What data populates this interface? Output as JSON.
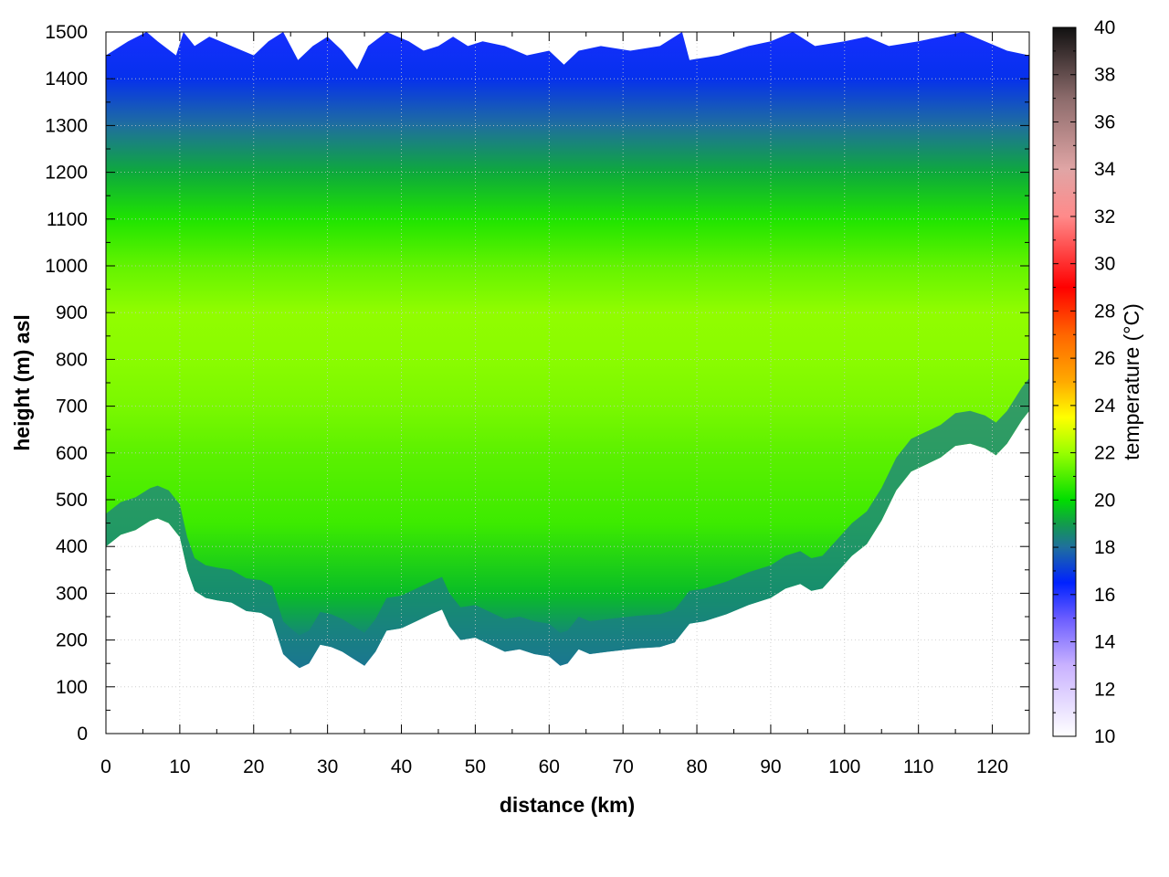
{
  "chart_data": {
    "type": "heatmap",
    "title": "",
    "xlabel": "distance (km)",
    "ylabel": "height (m) asl",
    "xlim": [
      0,
      125
    ],
    "ylim": [
      0,
      1500
    ],
    "xticks": [
      0,
      10,
      20,
      30,
      40,
      50,
      60,
      70,
      80,
      90,
      100,
      110,
      120
    ],
    "yticks": [
      0,
      100,
      200,
      300,
      400,
      500,
      600,
      700,
      800,
      900,
      1000,
      1100,
      1200,
      1300,
      1400,
      1500
    ],
    "grid": true,
    "colorbar": {
      "label": "temperature (°C)",
      "range": [
        10,
        40
      ],
      "ticks": [
        10,
        12,
        14,
        16,
        18,
        20,
        22,
        24,
        26,
        28,
        30,
        32,
        34,
        36,
        38,
        40
      ],
      "stops": [
        {
          "value": 10,
          "color": "#ffffff"
        },
        {
          "value": 13,
          "color": "#c9b2ff"
        },
        {
          "value": 15,
          "color": "#6a5cff"
        },
        {
          "value": 16.5,
          "color": "#0022ff"
        },
        {
          "value": 18,
          "color": "#1f6f9e"
        },
        {
          "value": 19,
          "color": "#129c4b"
        },
        {
          "value": 20,
          "color": "#00dd00"
        },
        {
          "value": 22,
          "color": "#99ff00"
        },
        {
          "value": 23.5,
          "color": "#ffff00"
        },
        {
          "value": 25,
          "color": "#ffaa00"
        },
        {
          "value": 27,
          "color": "#ff6600"
        },
        {
          "value": 29,
          "color": "#ff0000"
        },
        {
          "value": 32,
          "color": "#ff8a8a"
        },
        {
          "value": 34,
          "color": "#e0a5a5"
        },
        {
          "value": 37,
          "color": "#8c6b6b"
        },
        {
          "value": 40,
          "color": "#111111"
        }
      ]
    },
    "terrain_profile": {
      "distance_km": [
        0,
        2,
        4,
        6,
        7,
        8.5,
        10,
        11,
        12,
        13.5,
        15,
        17,
        19,
        21,
        22.5,
        24,
        25,
        26.2,
        27.5,
        29,
        30.5,
        32,
        33.5,
        35,
        36.5,
        38,
        40,
        42,
        44,
        45.5,
        46.5,
        48,
        50,
        52,
        54,
        56,
        58,
        60,
        61.5,
        62.5,
        64,
        65.5,
        68,
        72,
        75,
        77,
        79,
        81,
        84,
        87,
        90,
        92,
        94,
        95.5,
        97,
        99,
        101,
        103,
        105,
        107,
        109,
        111,
        113,
        115,
        117,
        119,
        120.5,
        122,
        124,
        125
      ],
      "ground_height_m": [
        400,
        425,
        435,
        455,
        460,
        450,
        420,
        350,
        305,
        290,
        285,
        280,
        262,
        258,
        245,
        170,
        155,
        140,
        150,
        190,
        185,
        175,
        160,
        145,
        175,
        220,
        225,
        240,
        255,
        265,
        230,
        200,
        205,
        190,
        175,
        180,
        170,
        165,
        145,
        150,
        180,
        170,
        175,
        182,
        185,
        195,
        235,
        240,
        255,
        275,
        290,
        310,
        320,
        305,
        310,
        345,
        380,
        405,
        455,
        520,
        560,
        575,
        590,
        615,
        620,
        610,
        595,
        620,
        670,
        690
      ]
    },
    "top_edge": {
      "distance_km": [
        0,
        3,
        5.5,
        7,
        9.5,
        10.5,
        12,
        14,
        17,
        20,
        22,
        24,
        26,
        28,
        30,
        32,
        34,
        35.5,
        38,
        41,
        43,
        45,
        47,
        49,
        51,
        54,
        57,
        60,
        62,
        64,
        67,
        71,
        75,
        78,
        79,
        83,
        87,
        90,
        93,
        96,
        100,
        103,
        106,
        110,
        113,
        116,
        119,
        122,
        125
      ],
      "height_m": [
        1450,
        1480,
        1500,
        1480,
        1450,
        1500,
        1470,
        1490,
        1470,
        1450,
        1480,
        1500,
        1440,
        1470,
        1490,
        1460,
        1420,
        1470,
        1500,
        1480,
        1460,
        1470,
        1490,
        1470,
        1480,
        1470,
        1450,
        1460,
        1430,
        1460,
        1470,
        1460,
        1470,
        1500,
        1440,
        1450,
        1470,
        1480,
        1500,
        1470,
        1480,
        1490,
        1470,
        1480,
        1490,
        1500,
        1480,
        1460,
        1450
      ]
    },
    "vertical_profile_typical": {
      "height_m": [
        150,
        300,
        450,
        600,
        700,
        800,
        900,
        1000,
        1100,
        1200,
        1300,
        1400,
        1500
      ],
      "temperature_c": [
        17.8,
        19.5,
        20.8,
        21.2,
        21.6,
        21.8,
        21.9,
        21.3,
        20.4,
        19.2,
        18.0,
        16.8,
        16.2
      ]
    }
  }
}
